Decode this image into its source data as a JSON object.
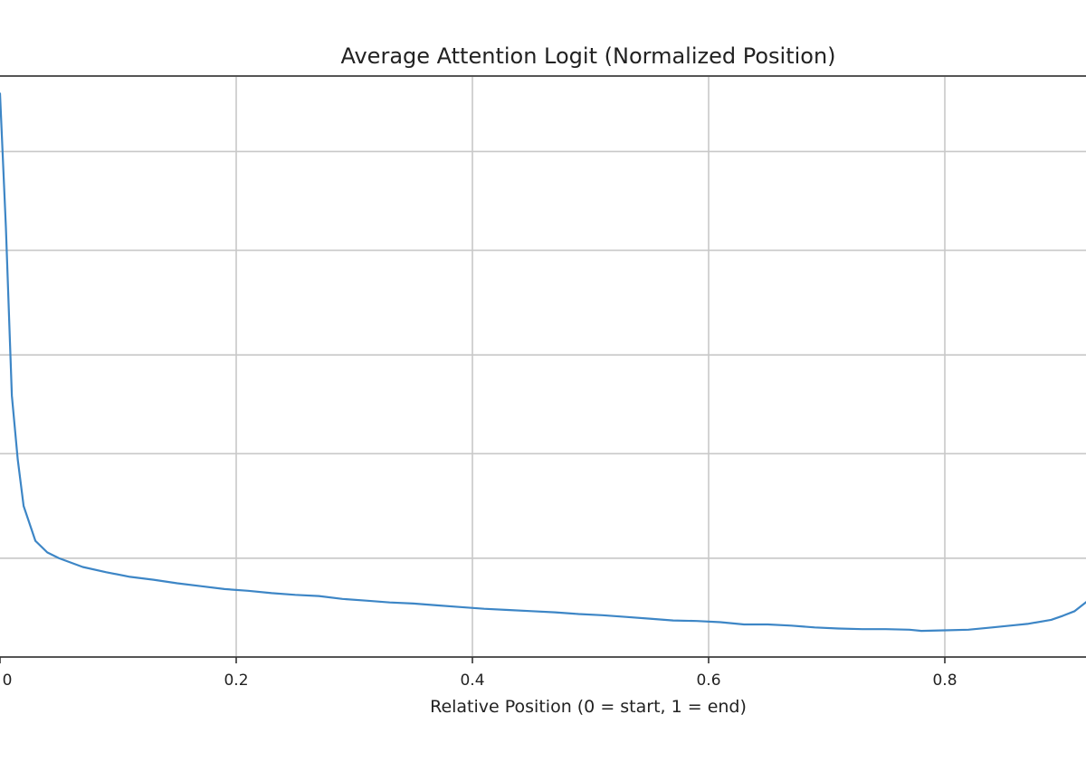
{
  "colors": {
    "line": "#3d86c6",
    "grid": "#c8c8c8",
    "spine": "#555555"
  },
  "chart_data": {
    "type": "line",
    "title": "Average Attention Logit (Normalized Position)",
    "xlabel": "Relative Position (0 = start, 1 = end)",
    "ylabel": "",
    "grid": true,
    "xlim": [
      0.0,
      0.92
    ],
    "ylim": [
      0.0,
      1.0
    ],
    "x_ticks": [
      0.0,
      0.2,
      0.4,
      0.6,
      0.8
    ],
    "x_tick_labels": [
      "0",
      "0.2",
      "0.4",
      "0.6",
      "0.8"
    ],
    "y_gridlines": [
      0.17,
      0.35,
      0.52,
      0.7,
      0.87
    ],
    "series": [
      {
        "x": [
          0.0,
          0.005,
          0.01,
          0.015,
          0.02,
          0.03,
          0.04,
          0.05,
          0.07,
          0.09,
          0.11,
          0.13,
          0.15,
          0.17,
          0.19,
          0.21,
          0.23,
          0.25,
          0.27,
          0.29,
          0.31,
          0.33,
          0.35,
          0.37,
          0.39,
          0.41,
          0.43,
          0.45,
          0.47,
          0.49,
          0.51,
          0.53,
          0.55,
          0.57,
          0.59,
          0.61,
          0.63,
          0.65,
          0.67,
          0.69,
          0.71,
          0.73,
          0.75,
          0.77,
          0.78,
          0.8,
          0.82,
          0.84,
          0.86,
          0.87,
          0.89,
          0.9,
          0.91,
          0.92
        ],
        "values": [
          0.97,
          0.74,
          0.45,
          0.34,
          0.26,
          0.2,
          0.18,
          0.17,
          0.155,
          0.146,
          0.138,
          0.133,
          0.127,
          0.122,
          0.117,
          0.114,
          0.11,
          0.107,
          0.105,
          0.1,
          0.097,
          0.094,
          0.092,
          0.089,
          0.086,
          0.083,
          0.081,
          0.079,
          0.077,
          0.074,
          0.072,
          0.069,
          0.066,
          0.063,
          0.062,
          0.06,
          0.056,
          0.056,
          0.054,
          0.051,
          0.049,
          0.048,
          0.048,
          0.047,
          0.045,
          0.046,
          0.047,
          0.051,
          0.055,
          0.057,
          0.064,
          0.071,
          0.079,
          0.095
        ]
      }
    ]
  }
}
